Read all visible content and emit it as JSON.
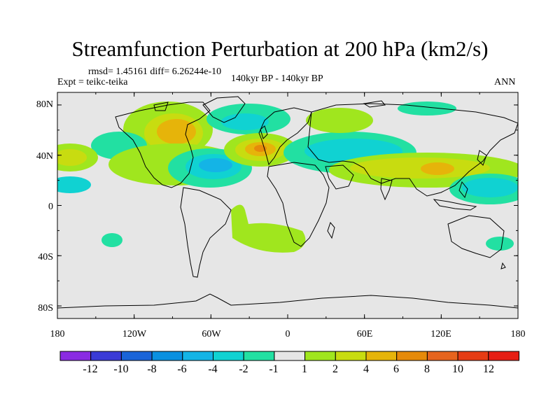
{
  "title": "Streamfunction Perturbation at 200 hPa (km2/s)",
  "stats": "rmsd= 1.45161  diff= 6.26244e-10",
  "expt": "Expt = teikc-teika",
  "center_label": "140kyr BP - 140kyr BP",
  "season": "ANN",
  "lat_ticks": [
    "80N",
    "40N",
    "0",
    "40S",
    "80S"
  ],
  "lon_ticks": [
    "180",
    "120W",
    "60W",
    "0",
    "60E",
    "120E",
    "180"
  ],
  "colorbar": {
    "labels": [
      "-12",
      "-10",
      "-8",
      "-6",
      "-4",
      "-2",
      "-1",
      "1",
      "2",
      "4",
      "6",
      "8",
      "10",
      "12"
    ],
    "colors": [
      "#8a2be2",
      "#3a3ad6",
      "#1a64d8",
      "#0a90e0",
      "#14b4e6",
      "#10d2d2",
      "#22e0a2",
      "#e6e6e6",
      "#a0e61e",
      "#c8dc10",
      "#e6b40a",
      "#e68a0a",
      "#e6641e",
      "#e63c14",
      "#e61e14"
    ]
  },
  "map_data": {
    "lon_range": [
      -180,
      180
    ],
    "lat_range": [
      -90,
      90
    ],
    "anomalies": [
      {
        "name": "north-america-high",
        "lon": -100,
        "lat": 55,
        "level": 4
      },
      {
        "name": "north-atlantic-high",
        "lon": -20,
        "lat": 45,
        "level": 8
      },
      {
        "name": "europe-asia-low",
        "lon": 40,
        "lat": 45,
        "level": -2
      },
      {
        "name": "pacific-low-east",
        "lon": 150,
        "lat": 25,
        "level": -4
      },
      {
        "name": "west-atlantic-low",
        "lon": -55,
        "lat": 35,
        "level": -4
      },
      {
        "name": "asia-high",
        "lon": 110,
        "lat": 35,
        "level": 4
      },
      {
        "name": "south-atlantic-positive",
        "lon": -25,
        "lat": -15,
        "level": 1
      },
      {
        "name": "south-pacific-low",
        "lon": -140,
        "lat": -25,
        "level": -2
      }
    ]
  }
}
